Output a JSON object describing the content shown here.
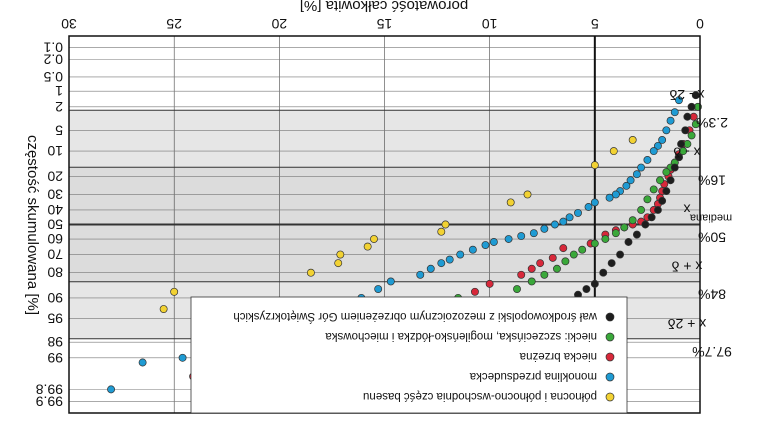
{
  "chart_data": {
    "type": "scatter",
    "rotated_180": true,
    "title": "",
    "xlabel": "porowatość całkowita [%]",
    "ylabel": "częstość skumulowana [%]",
    "xlim": [
      0,
      30
    ],
    "x_ticks": [
      0,
      5,
      10,
      15,
      20,
      25,
      30
    ],
    "y_scale": "probability",
    "y_ticks": [
      0.1,
      0.2,
      0.5,
      1,
      2,
      5,
      10,
      20,
      30,
      40,
      50,
      60,
      70,
      80,
      90,
      95,
      98,
      99,
      99.8,
      99.9
    ],
    "y_tick_labels": [
      "0.1",
      "0.2",
      "0.5",
      "1",
      "2",
      "5",
      "10",
      "20",
      "30",
      "40",
      "50",
      "60",
      "70",
      "80",
      "90",
      "95",
      "98",
      "99",
      "99.8",
      "99.9"
    ],
    "bands": [
      {
        "from": 2.3,
        "to": 15.9,
        "color": "#e6e6e6"
      },
      {
        "from": 15.9,
        "to": 84.1,
        "color": "#dcdcdc"
      },
      {
        "from": 84.1,
        "to": 97.7,
        "color": "#e6e6e6"
      }
    ],
    "band_lines": [
      2.3,
      15.9,
      50,
      84.1,
      97.7
    ],
    "band_labels": [
      {
        "level": 2.3,
        "left": "x - 2δ",
        "right": "2.3%"
      },
      {
        "level": 15.9,
        "left": "x - δ",
        "right": "16%"
      },
      {
        "level": 50,
        "left": "x",
        "right": "50%",
        "sub": "mediana"
      },
      {
        "level": 84.1,
        "left": "x + δ",
        "right": "84%"
      },
      {
        "level": 97.7,
        "left": "x + 2δ",
        "right": "97.7%"
      }
    ],
    "median_line": 50,
    "vertical_line_x": 5,
    "legend_position": "top",
    "series": [
      {
        "name": "północna i północno-wschodnia część basenu",
        "color": "#f2d233",
        "points": [
          [
            3.2,
            7
          ],
          [
            4.1,
            10
          ],
          [
            5.0,
            15
          ],
          [
            8.2,
            30
          ],
          [
            9.0,
            35
          ],
          [
            12.1,
            50
          ],
          [
            12.3,
            55
          ],
          [
            15.5,
            60
          ],
          [
            15.8,
            65
          ],
          [
            17.1,
            70
          ],
          [
            17.2,
            75
          ],
          [
            18.5,
            80
          ],
          [
            25.0,
            88
          ],
          [
            25.5,
            93
          ]
        ]
      },
      {
        "name": "monoklina przedsudecka",
        "color": "#1f9bd3",
        "points": [
          [
            1.0,
            1.5
          ],
          [
            1.2,
            2.5
          ],
          [
            1.4,
            3.5
          ],
          [
            1.6,
            5
          ],
          [
            1.8,
            7
          ],
          [
            2.0,
            8.5
          ],
          [
            2.2,
            10
          ],
          [
            2.5,
            13
          ],
          [
            2.8,
            16
          ],
          [
            3.0,
            19
          ],
          [
            3.3,
            22
          ],
          [
            3.5,
            25
          ],
          [
            3.8,
            28
          ],
          [
            4.0,
            30
          ],
          [
            4.3,
            32
          ],
          [
            5.0,
            35
          ],
          [
            5.3,
            38
          ],
          [
            5.8,
            42
          ],
          [
            6.2,
            45
          ],
          [
            6.5,
            48
          ],
          [
            6.9,
            50
          ],
          [
            7.4,
            53
          ],
          [
            7.9,
            56
          ],
          [
            8.5,
            58
          ],
          [
            9.1,
            60
          ],
          [
            9.8,
            62
          ],
          [
            10.2,
            64
          ],
          [
            10.8,
            67
          ],
          [
            11.4,
            70
          ],
          [
            11.9,
            73
          ],
          [
            12.3,
            75
          ],
          [
            12.8,
            78
          ],
          [
            13.3,
            81
          ],
          [
            14.7,
            84
          ],
          [
            15.3,
            87
          ],
          [
            16.1,
            90
          ],
          [
            16.6,
            92
          ],
          [
            17.3,
            94
          ],
          [
            21.5,
            97
          ],
          [
            24.6,
            99
          ],
          [
            26.5,
            99.2
          ],
          [
            28.0,
            99.8
          ]
        ]
      },
      {
        "name": "niecka brzeżna",
        "color": "#d8283a",
        "points": [
          [
            0.3,
            3
          ],
          [
            0.5,
            5
          ],
          [
            0.8,
            8
          ],
          [
            1.0,
            11
          ],
          [
            1.2,
            14
          ],
          [
            1.4,
            17
          ],
          [
            1.5,
            20
          ],
          [
            1.7,
            24
          ],
          [
            1.8,
            28
          ],
          [
            1.9,
            32
          ],
          [
            2.0,
            36
          ],
          [
            2.2,
            40
          ],
          [
            2.5,
            45
          ],
          [
            2.8,
            48
          ],
          [
            3.2,
            50
          ],
          [
            3.6,
            52
          ],
          [
            4.0,
            54
          ],
          [
            4.5,
            57
          ],
          [
            5.2,
            63
          ],
          [
            6.5,
            66
          ],
          [
            7.0,
            72
          ],
          [
            7.6,
            75
          ],
          [
            8.0,
            78
          ],
          [
            8.5,
            81
          ],
          [
            10.0,
            85
          ],
          [
            10.7,
            88
          ],
          [
            12.0,
            91
          ],
          [
            12.5,
            94
          ],
          [
            18.7,
            98
          ],
          [
            24.1,
            99.6
          ]
        ]
      },
      {
        "name": "niecki: szczecińska, mogileńsko-łódzka i miechowska",
        "color": "#3aa83a",
        "points": [
          [
            0.1,
            2
          ],
          [
            0.2,
            4
          ],
          [
            0.4,
            6
          ],
          [
            0.6,
            8
          ],
          [
            0.8,
            10
          ],
          [
            1.0,
            12
          ],
          [
            1.2,
            14
          ],
          [
            1.4,
            16
          ],
          [
            1.6,
            18
          ],
          [
            1.9,
            22
          ],
          [
            2.2,
            27
          ],
          [
            2.5,
            33
          ],
          [
            2.8,
            40
          ],
          [
            3.2,
            47
          ],
          [
            3.6,
            52
          ],
          [
            4.0,
            56
          ],
          [
            4.5,
            60
          ],
          [
            5.0,
            63
          ],
          [
            5.6,
            67
          ],
          [
            6.0,
            70
          ],
          [
            6.4,
            74
          ],
          [
            6.8,
            78
          ],
          [
            7.4,
            81
          ],
          [
            8.0,
            84
          ],
          [
            8.7,
            87
          ],
          [
            11.5,
            90
          ],
          [
            12.0,
            93
          ],
          [
            12.8,
            95
          ],
          [
            18.6,
            98.5
          ],
          [
            22.8,
            99.7
          ]
        ]
      },
      {
        "name": "wał środkowopolski z mezozoicznym obrzeżeniem Gór Świętokrzyskich",
        "color": "#1e1e1e",
        "points": [
          [
            0.2,
            1.2
          ],
          [
            0.4,
            2
          ],
          [
            0.6,
            3
          ],
          [
            0.7,
            5
          ],
          [
            0.9,
            8
          ],
          [
            1.0,
            12
          ],
          [
            1.2,
            16
          ],
          [
            1.4,
            22
          ],
          [
            1.6,
            28
          ],
          [
            1.8,
            34
          ],
          [
            2.0,
            40
          ],
          [
            2.3,
            45
          ],
          [
            2.6,
            50
          ],
          [
            3.0,
            57
          ],
          [
            3.4,
            62
          ],
          [
            3.8,
            70
          ],
          [
            4.2,
            75
          ],
          [
            4.6,
            80
          ],
          [
            5.0,
            85
          ],
          [
            5.4,
            87
          ],
          [
            5.8,
            89
          ],
          [
            6.3,
            91
          ],
          [
            6.9,
            93
          ],
          [
            7.3,
            95
          ],
          [
            7.8,
            96
          ],
          [
            8.0,
            97
          ],
          [
            8.4,
            98
          ],
          [
            8.8,
            99.8
          ]
        ]
      }
    ]
  }
}
